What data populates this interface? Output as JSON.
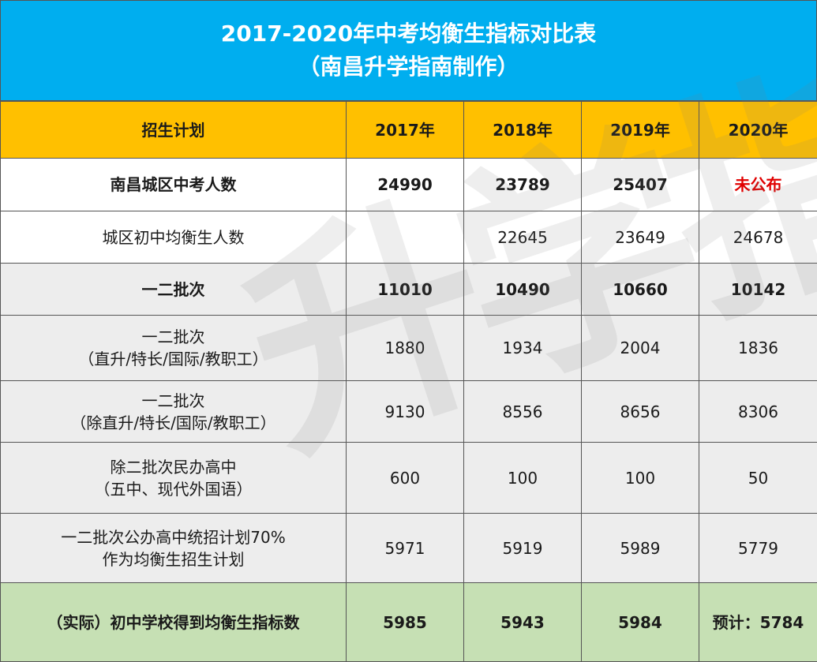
{
  "title": {
    "line1": "2017-2020年中考均衡生指标对比表",
    "line2": "（南昌升学指南制作）"
  },
  "watermark": "升学指南",
  "header": [
    "招生计划",
    "2017年",
    "2018年",
    "2019年",
    "2020年"
  ],
  "rows": [
    {
      "label": [
        "南昌城区中考人数"
      ],
      "values": [
        "24990",
        "23789",
        "25407",
        "未公布"
      ]
    },
    {
      "label": [
        "城区初中均衡生人数"
      ],
      "values": [
        "",
        "22645",
        "23649",
        "24678"
      ]
    },
    {
      "label": [
        "一二批次"
      ],
      "values": [
        "11010",
        "10490",
        "10660",
        "10142"
      ]
    },
    {
      "label": [
        "一二批次",
        "（直升/特长/国际/教职工）"
      ],
      "values": [
        "1880",
        "1934",
        "2004",
        "1836"
      ]
    },
    {
      "label": [
        "一二批次",
        "（除直升/特长/国际/教职工）"
      ],
      "values": [
        "9130",
        "8556",
        "8656",
        "8306"
      ]
    },
    {
      "label": [
        "除二批次民办高中",
        "（五中、现代外国语）"
      ],
      "values": [
        "600",
        "100",
        "100",
        "50"
      ]
    },
    {
      "label": [
        "一二批次公办高中统招计划70%",
        "作为均衡生招生计划"
      ],
      "values": [
        "5971",
        "5919",
        "5989",
        "5779"
      ]
    },
    {
      "label": [
        "（实际）初中学校得到均衡生指标数"
      ],
      "values": [
        "5985",
        "5943",
        "5984",
        "预计：5784"
      ]
    }
  ],
  "colors": {
    "title_bg": "#00aeef",
    "header_bg": "#ffc000",
    "gray_row_bg": "#ededed",
    "green_row_bg": "#c6e0b4",
    "highlight_text": "#e00000"
  }
}
